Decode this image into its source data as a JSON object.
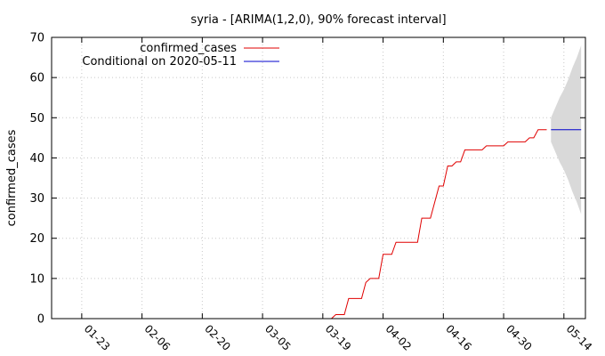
{
  "chart_data": {
    "type": "line",
    "title": "syria -  [ARIMA(1,2,0), 90% forecast interval]",
    "ylabel": "confirmed_cases",
    "xlabel": "",
    "ylim": [
      0,
      70
    ],
    "yticks": [
      0,
      10,
      20,
      30,
      40,
      50,
      60,
      70
    ],
    "xlim": [
      "2020-01-16",
      "2020-05-19"
    ],
    "xticks": [
      {
        "date": "2020-01-23",
        "label": "01-23"
      },
      {
        "date": "2020-02-06",
        "label": "02-06"
      },
      {
        "date": "2020-02-20",
        "label": "02-20"
      },
      {
        "date": "2020-03-05",
        "label": "03-05"
      },
      {
        "date": "2020-03-19",
        "label": "03-19"
      },
      {
        "date": "2020-04-02",
        "label": "04-02"
      },
      {
        "date": "2020-04-16",
        "label": "04-16"
      },
      {
        "date": "2020-04-30",
        "label": "04-30"
      },
      {
        "date": "2020-05-14",
        "label": "05-14"
      }
    ],
    "grid": true,
    "legend_position": "top-left",
    "series": [
      {
        "name": "confirmed_cases",
        "color": "#e00000",
        "points": [
          [
            "2020-03-21",
            0
          ],
          [
            "2020-03-22",
            1
          ],
          [
            "2020-03-24",
            1
          ],
          [
            "2020-03-25",
            5
          ],
          [
            "2020-03-28",
            5
          ],
          [
            "2020-03-29",
            9
          ],
          [
            "2020-03-30",
            10
          ],
          [
            "2020-04-01",
            10
          ],
          [
            "2020-04-02",
            16
          ],
          [
            "2020-04-04",
            16
          ],
          [
            "2020-04-05",
            19
          ],
          [
            "2020-04-10",
            19
          ],
          [
            "2020-04-11",
            25
          ],
          [
            "2020-04-13",
            25
          ],
          [
            "2020-04-15",
            33
          ],
          [
            "2020-04-16",
            33
          ],
          [
            "2020-04-17",
            38
          ],
          [
            "2020-04-18",
            38
          ],
          [
            "2020-04-19",
            39
          ],
          [
            "2020-04-20",
            39
          ],
          [
            "2020-04-21",
            42
          ],
          [
            "2020-04-25",
            42
          ],
          [
            "2020-04-26",
            43
          ],
          [
            "2020-04-30",
            43
          ],
          [
            "2020-05-01",
            44
          ],
          [
            "2020-05-05",
            44
          ],
          [
            "2020-05-06",
            45
          ],
          [
            "2020-05-07",
            45
          ],
          [
            "2020-05-08",
            47
          ],
          [
            "2020-05-10",
            47
          ]
        ]
      },
      {
        "name": "Conditional on 2020-05-11",
        "color": "#0000cc",
        "points": [
          [
            "2020-05-11",
            47
          ],
          [
            "2020-05-18",
            47
          ]
        ]
      }
    ],
    "forecast_interval": {
      "color": "#d9d9d9",
      "points": [
        {
          "x": "2020-05-11",
          "lower": 44,
          "upper": 50
        },
        {
          "x": "2020-05-12",
          "lower": 41.5,
          "upper": 52.5
        },
        {
          "x": "2020-05-13",
          "lower": 39,
          "upper": 55
        },
        {
          "x": "2020-05-14",
          "lower": 37,
          "upper": 57
        },
        {
          "x": "2020-05-15",
          "lower": 34.5,
          "upper": 59.5
        },
        {
          "x": "2020-05-16",
          "lower": 31.5,
          "upper": 62.5
        },
        {
          "x": "2020-05-17",
          "lower": 29,
          "upper": 65
        },
        {
          "x": "2020-05-18",
          "lower": 26,
          "upper": 68
        }
      ]
    }
  }
}
